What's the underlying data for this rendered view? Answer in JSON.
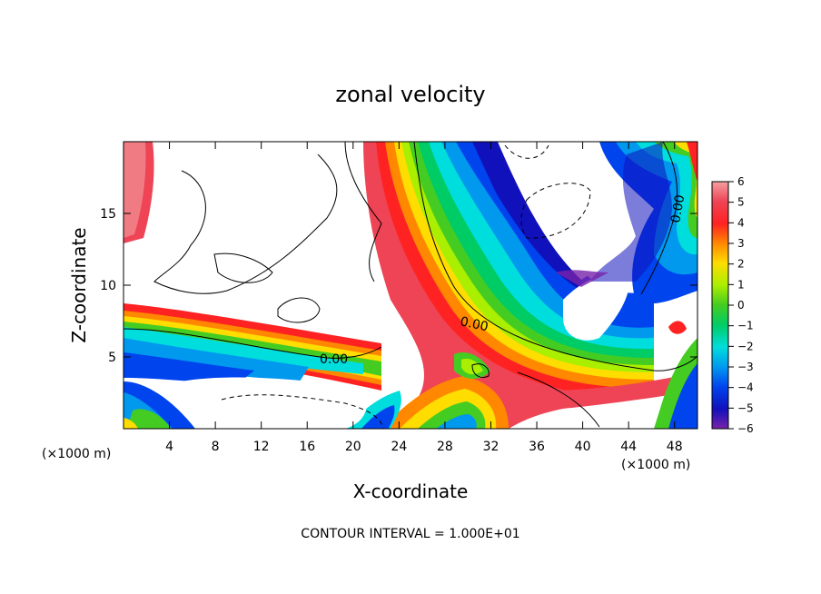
{
  "chart_data": {
    "type": "heatmap",
    "title": "zonal velocity",
    "xlabel": "X-coordinate",
    "ylabel": "Z-coordinate",
    "x_unit_note": "(×1000 m)",
    "footer": "CONTOUR INTERVAL = 1.000E+01",
    "x_ticks": [
      4,
      8,
      12,
      16,
      20,
      24,
      28,
      32,
      36,
      40,
      44,
      48
    ],
    "y_ticks": [
      5,
      10,
      15
    ],
    "xlim": [
      0,
      50
    ],
    "ylim": [
      0,
      20
    ],
    "colorbar": {
      "ticks": [
        6,
        5,
        4,
        3,
        2,
        1,
        0,
        -1,
        -2,
        -3,
        -4,
        -5,
        -6
      ],
      "range": [
        -6,
        6
      ]
    },
    "contour_labels": [
      "0.00",
      "0.00",
      "0.00"
    ],
    "colors": {
      "c6": "#f4a0a0",
      "c5": "#ee4455",
      "c4": "#ff2222",
      "c3": "#ff8800",
      "c2": "#ffdd00",
      "c1": "#aaee00",
      "c0": "#44cc22",
      "m1": "#00cc66",
      "m2": "#00dddd",
      "m3": "#0099ee",
      "m4": "#0044ee",
      "m5": "#1111bb",
      "m6": "#7722aa"
    }
  }
}
